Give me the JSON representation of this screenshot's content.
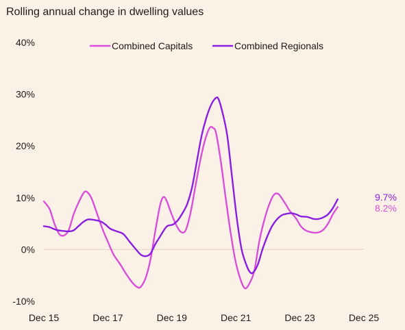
{
  "chart_data": {
    "type": "line",
    "title": "Rolling annual change in dwelling values",
    "xlabel": "",
    "ylabel": "",
    "x_tick_labels": [
      "Dec 15",
      "Dec 17",
      "Dec 19",
      "Dec 21",
      "Dec 23",
      "Dec 25"
    ],
    "x_range": [
      2015.92,
      2025.92
    ],
    "y_ticks": [
      -10,
      0,
      10,
      20,
      30,
      40
    ],
    "y_tick_labels": [
      "-10%",
      "0%",
      "10%",
      "20%",
      "30%",
      "40%"
    ],
    "ylim": [
      -10,
      40
    ],
    "grid": false,
    "zero_line": true,
    "legend_position": "top",
    "colors": {
      "capitals": "#d94fd8",
      "regionals": "#8a1ee0",
      "zero_line": "#e0d2c2"
    },
    "series": [
      {
        "name": "Combined Capitals",
        "color": "#d94fd8",
        "end_label": "8.2%",
        "points": [
          [
            2015.92,
            9.3
          ],
          [
            2016.1,
            7.8
          ],
          [
            2016.25,
            5.0
          ],
          [
            2016.4,
            3.0
          ],
          [
            2016.55,
            2.7
          ],
          [
            2016.7,
            3.8
          ],
          [
            2016.85,
            6.8
          ],
          [
            2017.0,
            9.0
          ],
          [
            2017.15,
            10.8
          ],
          [
            2017.25,
            11.2
          ],
          [
            2017.4,
            10.0
          ],
          [
            2017.55,
            7.5
          ],
          [
            2017.75,
            4.0
          ],
          [
            2017.92,
            1.5
          ],
          [
            2018.1,
            -1.0
          ],
          [
            2018.3,
            -2.8
          ],
          [
            2018.5,
            -4.8
          ],
          [
            2018.7,
            -6.5
          ],
          [
            2018.85,
            -7.3
          ],
          [
            2018.95,
            -7.2
          ],
          [
            2019.1,
            -5.5
          ],
          [
            2019.25,
            -2.0
          ],
          [
            2019.4,
            3.5
          ],
          [
            2019.55,
            8.5
          ],
          [
            2019.65,
            10.1
          ],
          [
            2019.75,
            9.5
          ],
          [
            2019.9,
            7.0
          ],
          [
            2020.05,
            4.8
          ],
          [
            2020.2,
            3.4
          ],
          [
            2020.35,
            3.7
          ],
          [
            2020.5,
            7.0
          ],
          [
            2020.65,
            12.0
          ],
          [
            2020.8,
            17.0
          ],
          [
            2020.95,
            21.0
          ],
          [
            2021.1,
            23.5
          ],
          [
            2021.2,
            23.5
          ],
          [
            2021.3,
            22.5
          ],
          [
            2021.45,
            17.0
          ],
          [
            2021.6,
            10.0
          ],
          [
            2021.75,
            3.5
          ],
          [
            2021.9,
            -2.0
          ],
          [
            2022.05,
            -5.5
          ],
          [
            2022.2,
            -7.5
          ],
          [
            2022.35,
            -6.5
          ],
          [
            2022.5,
            -4.0
          ],
          [
            2022.65,
            1.5
          ],
          [
            2022.8,
            5.5
          ],
          [
            2022.95,
            8.5
          ],
          [
            2023.1,
            10.5
          ],
          [
            2023.25,
            10.7
          ],
          [
            2023.45,
            9.0
          ],
          [
            2023.6,
            7.5
          ],
          [
            2023.8,
            6.0
          ],
          [
            2023.95,
            4.5
          ],
          [
            2024.1,
            3.7
          ],
          [
            2024.3,
            3.3
          ],
          [
            2024.5,
            3.3
          ],
          [
            2024.65,
            3.8
          ],
          [
            2024.8,
            5.0
          ],
          [
            2024.95,
            6.8
          ],
          [
            2025.1,
            8.2
          ]
        ]
      },
      {
        "name": "Combined Regionals",
        "color": "#8a1ee0",
        "end_label": "9.7%",
        "points": [
          [
            2015.92,
            4.5
          ],
          [
            2016.1,
            4.3
          ],
          [
            2016.3,
            3.8
          ],
          [
            2016.5,
            3.6
          ],
          [
            2016.7,
            3.5
          ],
          [
            2016.85,
            3.7
          ],
          [
            2017.0,
            4.5
          ],
          [
            2017.15,
            5.3
          ],
          [
            2017.3,
            5.8
          ],
          [
            2017.5,
            5.7
          ],
          [
            2017.7,
            5.4
          ],
          [
            2017.85,
            4.8
          ],
          [
            2018.0,
            4.0
          ],
          [
            2018.2,
            3.5
          ],
          [
            2018.4,
            3.0
          ],
          [
            2018.6,
            1.5
          ],
          [
            2018.8,
            0.0
          ],
          [
            2018.95,
            -1.0
          ],
          [
            2019.1,
            -1.3
          ],
          [
            2019.25,
            -0.8
          ],
          [
            2019.4,
            1.0
          ],
          [
            2019.55,
            2.5
          ],
          [
            2019.7,
            4.0
          ],
          [
            2019.8,
            4.6
          ],
          [
            2019.95,
            4.8
          ],
          [
            2020.1,
            5.6
          ],
          [
            2020.25,
            7.0
          ],
          [
            2020.4,
            8.8
          ],
          [
            2020.55,
            12.0
          ],
          [
            2020.7,
            17.0
          ],
          [
            2020.85,
            22.0
          ],
          [
            2021.0,
            25.5
          ],
          [
            2021.15,
            28.0
          ],
          [
            2021.3,
            29.3
          ],
          [
            2021.38,
            29.0
          ],
          [
            2021.5,
            26.5
          ],
          [
            2021.65,
            22.0
          ],
          [
            2021.8,
            14.0
          ],
          [
            2021.95,
            6.0
          ],
          [
            2022.1,
            0.0
          ],
          [
            2022.25,
            -3.0
          ],
          [
            2022.35,
            -4.3
          ],
          [
            2022.45,
            -4.5
          ],
          [
            2022.6,
            -3.0
          ],
          [
            2022.75,
            0.0
          ],
          [
            2022.9,
            2.5
          ],
          [
            2023.05,
            4.5
          ],
          [
            2023.2,
            5.8
          ],
          [
            2023.35,
            6.6
          ],
          [
            2023.5,
            6.9
          ],
          [
            2023.65,
            7.0
          ],
          [
            2023.8,
            6.8
          ],
          [
            2023.95,
            6.4
          ],
          [
            2024.15,
            6.3
          ],
          [
            2024.35,
            5.9
          ],
          [
            2024.5,
            5.9
          ],
          [
            2024.65,
            6.2
          ],
          [
            2024.8,
            6.8
          ],
          [
            2024.95,
            8.0
          ],
          [
            2025.1,
            9.7
          ]
        ]
      }
    ]
  }
}
